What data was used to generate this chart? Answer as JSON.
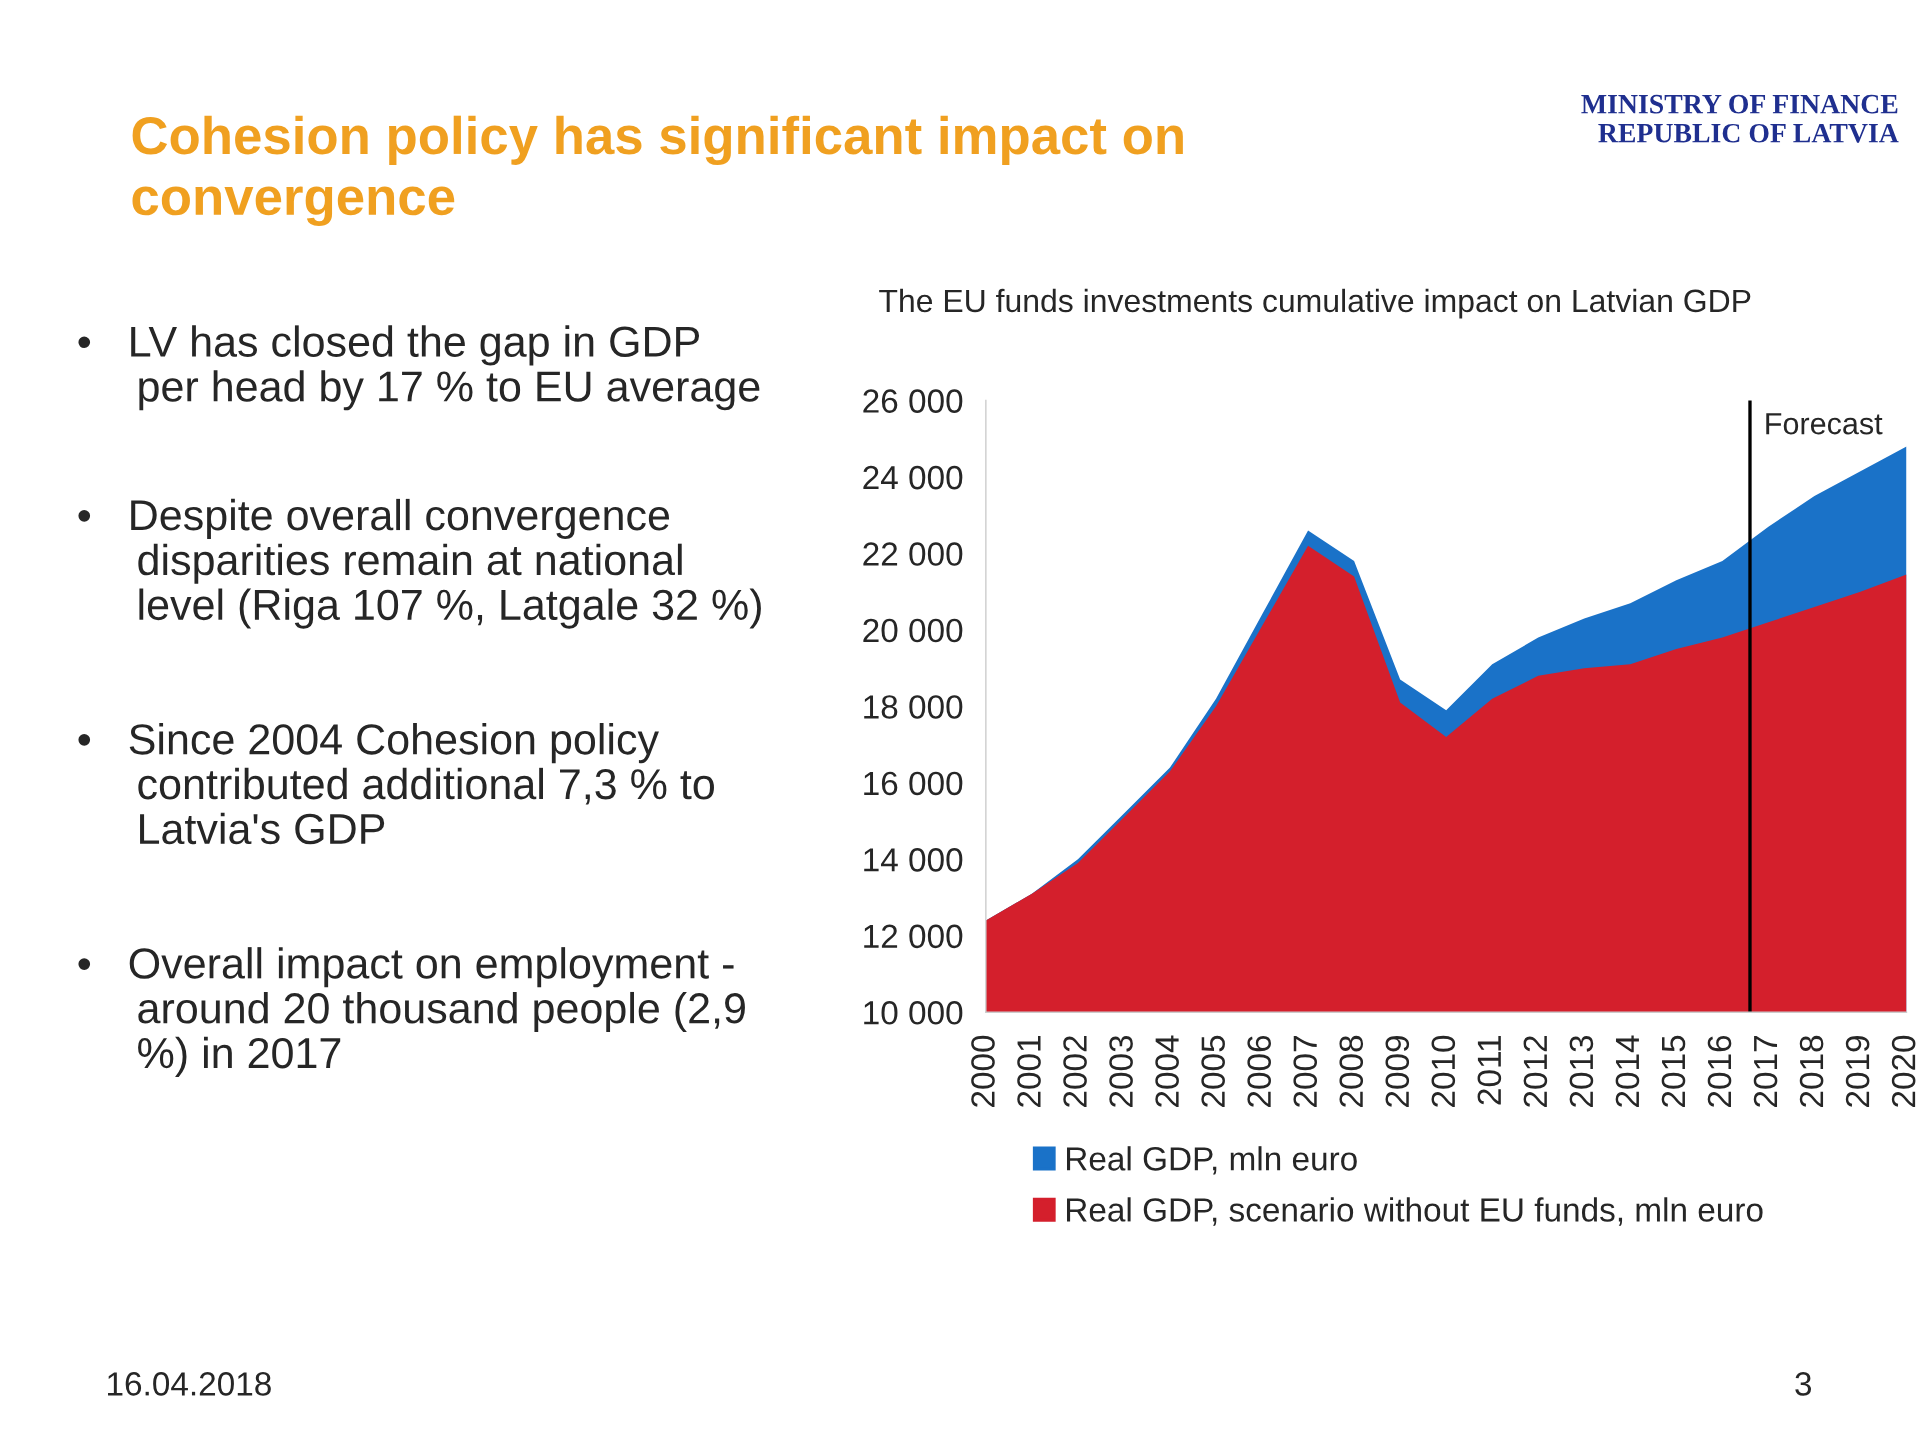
{
  "chart_data": {
    "type": "area",
    "title": "Cohesion policy has significant impact on\nconvergence",
    "subtitle": "The EU funds investments cumulative impact on Latvian GDP",
    "x": [
      2000,
      2001,
      2002,
      2003,
      2004,
      2005,
      2006,
      2007,
      2008,
      2009,
      2010,
      2011,
      2012,
      2013,
      2014,
      2015,
      2016,
      2017,
      2018,
      2019,
      2020
    ],
    "series": [
      {
        "name": "Real GDP, mln euro",
        "color": "#1a72c8",
        "values": [
          12400,
          13100,
          14000,
          15200,
          16400,
          18200,
          20400,
          22600,
          21800,
          18700,
          17900,
          19100,
          19800,
          20300,
          20700,
          21300,
          21800,
          22700,
          23500,
          24150,
          24800
        ]
      },
      {
        "name": "Real GDP, scenario without EU funds, mln euro",
        "color": "#d41f2c",
        "values": [
          12400,
          13100,
          13900,
          15100,
          16300,
          18000,
          20100,
          22200,
          21400,
          18100,
          17200,
          18200,
          18800,
          19000,
          19100,
          19500,
          19800,
          20200,
          20600,
          21000,
          21450
        ]
      }
    ],
    "xlim": [
      2000,
      2020
    ],
    "xticks": [
      2000,
      2001,
      2002,
      2003,
      2004,
      2005,
      2006,
      2007,
      2008,
      2009,
      2010,
      2011,
      2012,
      2013,
      2014,
      2015,
      2016,
      2017,
      2018,
      2019,
      2020
    ],
    "ylim": [
      10000,
      26000
    ],
    "yticks": [
      {
        "value": 10000,
        "label": "10 000"
      },
      {
        "value": 12000,
        "label": "12 000"
      },
      {
        "value": 14000,
        "label": "14 000"
      },
      {
        "value": 16000,
        "label": "16 000"
      },
      {
        "value": 18000,
        "label": "18 000"
      },
      {
        "value": 20000,
        "label": "20 000"
      },
      {
        "value": 22000,
        "label": "22 000"
      },
      {
        "value": 24000,
        "label": "24 000"
      },
      {
        "value": 26000,
        "label": "26 000"
      }
    ],
    "ref_lines": [
      {
        "axis": "x",
        "value": 2016.6,
        "label": "Forecast",
        "color": "#000000"
      }
    ],
    "grid": false,
    "legend": "bottom",
    "annotations": [
      "MINISTRY OF FINANCE\nREPUBLIC OF LATVIA",
      "•   LV has closed the gap in GDP\n     per head by 17 % to EU average",
      "•   Despite overall convergence\n     disparities remain at national\n     level (Riga 107 %, Latgale 32 %)",
      "•   Since 2004 Cohesion policy\n     contributed additional 7,3 % to\n     Latvia's GDP",
      "•   Overall impact on employment -\n     around 20 thousand people (2,9\n     %) in 2017",
      "16.04.2018",
      "3"
    ]
  }
}
